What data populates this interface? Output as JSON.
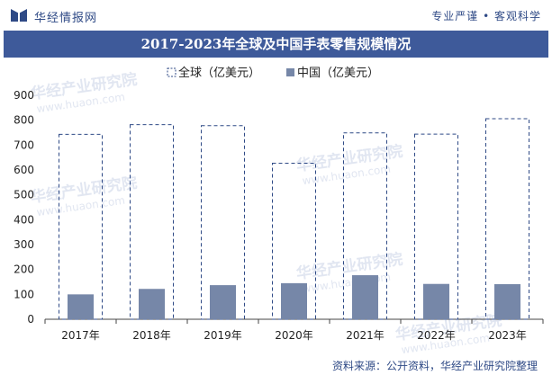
{
  "header": {
    "brand": "华经情报网",
    "slogan": "专业严谨 • 客观科学"
  },
  "watermark": {
    "text": "华经产业研究院",
    "url": "www.huaon.com"
  },
  "source": "资料来源：公开资料，华经产业研究院整理",
  "colors": {
    "title_bg": "#3e5a9a",
    "global_outline": "#2f4a86",
    "china_bar": "#7687a8",
    "brand": "#2f4a86"
  },
  "chart_data": {
    "type": "bar",
    "title": "2017-2023年全球及中国手表零售规模情况",
    "categories": [
      "2017年",
      "2018年",
      "2019年",
      "2020年",
      "2021年",
      "2022年",
      "2023年"
    ],
    "series": [
      {
        "name": "全球（亿美元）",
        "values": [
          743,
          782,
          778,
          627,
          749,
          744,
          806
        ],
        "style": "dashed-outline"
      },
      {
        "name": "中国（亿美元）",
        "values": [
          100,
          122,
          137,
          145,
          177,
          142,
          141
        ],
        "style": "filled"
      }
    ],
    "xlabel": "",
    "ylabel": "",
    "ylim": [
      0,
      900
    ],
    "yticks": [
      0,
      100,
      200,
      300,
      400,
      500,
      600,
      700,
      800,
      900
    ],
    "legend": "top-center",
    "grid": false
  }
}
